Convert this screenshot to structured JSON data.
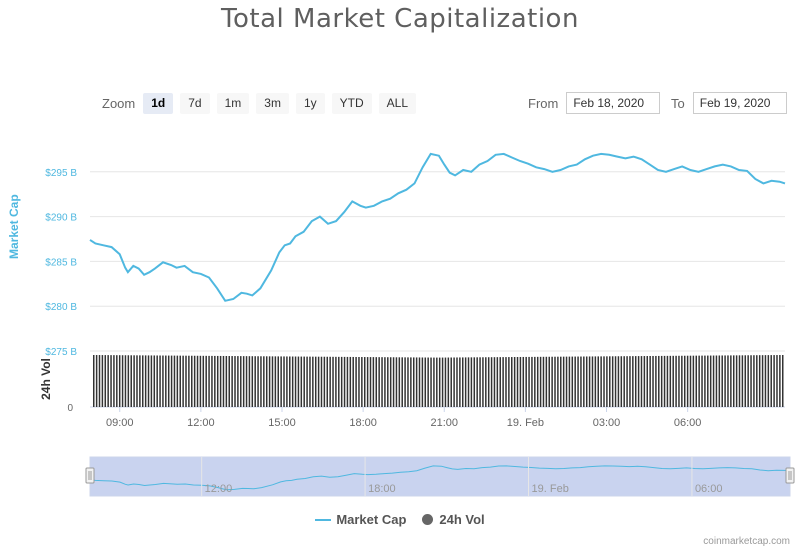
{
  "title": "Total Market Capitalization",
  "zoom": {
    "label": "Zoom",
    "buttons": [
      "1d",
      "7d",
      "1m",
      "3m",
      "1y",
      "YTD",
      "ALL"
    ],
    "active": "1d"
  },
  "range": {
    "from_label": "From",
    "from_value": "Feb 18, 2020",
    "to_label": "To",
    "to_value": "Feb 19, 2020"
  },
  "legend": {
    "market_cap": "Market Cap",
    "volume": "24h Vol"
  },
  "credit": "coinmarketcap.com",
  "colors": {
    "market_cap_line": "#4fb8e0",
    "volume_bars": "#333333",
    "navigator_fill": "#c9d3ef",
    "grid": "#e6e6e6"
  },
  "chart_data": {
    "type": "line",
    "title": "Total Market Capitalization",
    "ylabel": "Market Cap",
    "ylabel_volume": "24h Vol",
    "ylim": [
      275,
      300
    ],
    "y_ticks": [
      275,
      280,
      285,
      290,
      295
    ],
    "y_tick_labels": [
      "$275 B",
      "$280 B",
      "$285 B",
      "$290 B",
      "$295 B"
    ],
    "volume_tick_label": "0",
    "x_ticks": [
      "09:00",
      "12:00",
      "15:00",
      "18:00",
      "21:00",
      "19. Feb",
      "03:00",
      "06:00"
    ],
    "navigator_ticks": [
      "12:00",
      "18:00",
      "19. Feb",
      "06:00"
    ],
    "legend_position": "bottom",
    "grid": true,
    "series": [
      {
        "name": "Market Cap",
        "x_hours": [
          7.9,
          8.1,
          8.4,
          8.7,
          9.0,
          9.2,
          9.3,
          9.5,
          9.7,
          9.9,
          10.1,
          10.3,
          10.6,
          10.9,
          11.1,
          11.4,
          11.7,
          12.0,
          12.3,
          12.6,
          12.9,
          13.2,
          13.5,
          13.7,
          13.9,
          14.2,
          14.6,
          14.9,
          15.1,
          15.3,
          15.5,
          15.8,
          16.1,
          16.4,
          16.7,
          17.0,
          17.3,
          17.6,
          17.9,
          18.1,
          18.4,
          18.7,
          19.0,
          19.3,
          19.6,
          19.9,
          20.2,
          20.5,
          20.8,
          21.0,
          21.2,
          21.4,
          21.7,
          22.0,
          22.3,
          22.6,
          22.9,
          23.2,
          23.5,
          23.8,
          24.1,
          24.4,
          24.7,
          25.0,
          25.3,
          25.6,
          25.9,
          26.2,
          26.5,
          26.8,
          27.1,
          27.4,
          27.7,
          28.0,
          28.3,
          28.6,
          28.9,
          29.2,
          29.5,
          29.8,
          30.1,
          30.4,
          30.7,
          31.0,
          31.3,
          31.6,
          31.9,
          32.2,
          32.5,
          32.8,
          33.1,
          33.4,
          33.6
        ],
        "values": [
          287.4,
          287.0,
          286.8,
          286.6,
          285.8,
          284.3,
          283.8,
          284.5,
          284.2,
          283.5,
          283.8,
          284.2,
          284.9,
          284.6,
          284.3,
          284.5,
          283.8,
          283.6,
          283.2,
          282.0,
          280.6,
          280.8,
          281.5,
          281.4,
          281.2,
          282.0,
          284.0,
          286.0,
          286.8,
          287.0,
          287.8,
          288.3,
          289.5,
          290.0,
          289.2,
          289.5,
          290.5,
          291.7,
          291.2,
          291.0,
          291.2,
          291.7,
          292.0,
          292.6,
          293.0,
          293.7,
          295.5,
          297.0,
          296.8,
          295.8,
          294.9,
          294.6,
          295.2,
          295.0,
          295.8,
          296.2,
          296.9,
          297.0,
          296.6,
          296.2,
          295.9,
          295.5,
          295.3,
          295.0,
          295.2,
          295.6,
          295.8,
          296.4,
          296.8,
          297.0,
          296.9,
          296.7,
          296.5,
          296.7,
          296.4,
          295.8,
          295.2,
          295.0,
          295.3,
          295.6,
          295.2,
          295.0,
          295.3,
          295.6,
          295.8,
          295.6,
          295.2,
          295.1,
          294.2,
          293.7,
          294.0,
          293.9,
          293.7
        ]
      },
      {
        "name": "24h Vol",
        "relative_level": [
          1.0,
          0.99,
          0.98,
          0.97,
          0.96,
          0.95,
          0.96,
          0.97,
          0.98,
          0.99,
          1.0
        ]
      }
    ]
  }
}
